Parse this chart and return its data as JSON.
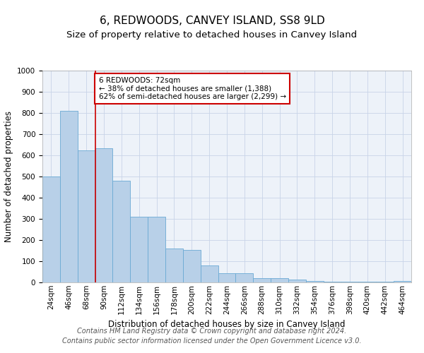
{
  "title": "6, REDWOODS, CANVEY ISLAND, SS8 9LD",
  "subtitle": "Size of property relative to detached houses in Canvey Island",
  "xlabel": "Distribution of detached houses by size in Canvey Island",
  "ylabel": "Number of detached properties",
  "footer_line1": "Contains HM Land Registry data © Crown copyright and database right 2024.",
  "footer_line2": "Contains public sector information licensed under the Open Government Licence v3.0.",
  "categories": [
    "24sqm",
    "46sqm",
    "68sqm",
    "90sqm",
    "112sqm",
    "134sqm",
    "156sqm",
    "178sqm",
    "200sqm",
    "222sqm",
    "244sqm",
    "266sqm",
    "288sqm",
    "310sqm",
    "332sqm",
    "354sqm",
    "376sqm",
    "398sqm",
    "420sqm",
    "442sqm",
    "464sqm"
  ],
  "values": [
    500,
    810,
    625,
    635,
    480,
    310,
    310,
    160,
    155,
    80,
    45,
    43,
    20,
    20,
    14,
    8,
    5,
    3,
    3,
    2,
    8
  ],
  "bar_color": "#b8d0e8",
  "bar_edge_color": "#6aaad4",
  "grid_color": "#c8d4e8",
  "background_color": "#edf2f9",
  "vline_x": 2.5,
  "vline_color": "#cc0000",
  "ylim": [
    0,
    1000
  ],
  "yticks": [
    0,
    100,
    200,
    300,
    400,
    500,
    600,
    700,
    800,
    900,
    1000
  ],
  "annotation_text": "6 REDWOODS: 72sqm\n← 38% of detached houses are smaller (1,388)\n62% of semi-detached houses are larger (2,299) →",
  "annotation_box_facecolor": "#ffffff",
  "annotation_box_edgecolor": "#cc0000",
  "title_fontsize": 11,
  "subtitle_fontsize": 9.5,
  "axis_label_fontsize": 8.5,
  "tick_fontsize": 7.5,
  "annotation_fontsize": 7.5,
  "footer_fontsize": 7
}
